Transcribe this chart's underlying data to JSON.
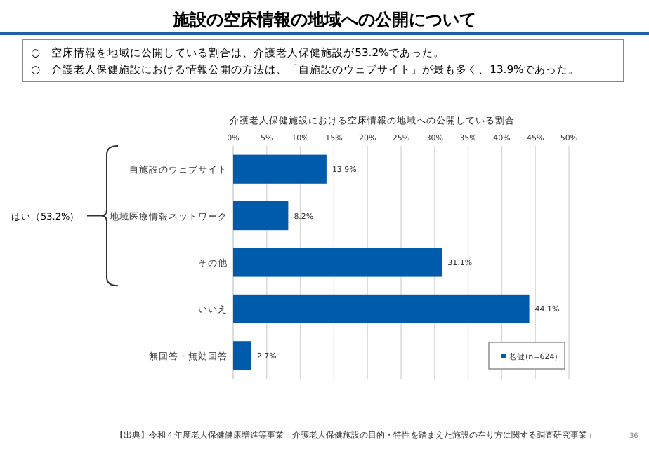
{
  "chart_data": {
    "type": "bar",
    "orientation": "horizontal",
    "title": "施設の空床情報の地域への公開について",
    "subtitle": "介護老人保健施設における空床情報の地域への公開している割合",
    "categories": [
      "自施設のウェブサイト",
      "地域医療情報ネットワーク",
      "その他",
      "いいえ",
      "無回答・無効回答"
    ],
    "series": [
      {
        "name": "老健(n=624)",
        "color": "#005bac",
        "values": [
          13.9,
          8.2,
          31.1,
          44.1,
          2.7
        ],
        "value_labels": [
          "13.9%",
          "8.2%",
          "31.1%",
          "44.1%",
          "2.7%"
        ]
      }
    ],
    "xlim": [
      0,
      50
    ],
    "xticks": [
      {
        "value": 0,
        "label": "0%"
      },
      {
        "value": 5,
        "label": "5%"
      },
      {
        "value": 10,
        "label": "10%"
      },
      {
        "value": 15,
        "label": "15%"
      },
      {
        "value": 20,
        "label": "20%"
      },
      {
        "value": 25,
        "label": "25%"
      },
      {
        "value": 30,
        "label": "30%"
      },
      {
        "value": 35,
        "label": "35%"
      },
      {
        "value": 40,
        "label": "40%"
      },
      {
        "value": 45,
        "label": "45%"
      },
      {
        "value": 50,
        "label": "50%"
      }
    ],
    "grid": "x",
    "legend": "bottom right",
    "annotations": [
      "○　空床情報を地域に公開している割合は、介護老人保健施設が53.2%であった。",
      "○　介護老人保健施設における情報公開の方法は、「自施設のウェブサイト」が最も多く、13.9%であった。",
      "はい（53.2%）",
      "【出典】令和４年度老人保健健康増進等事業「介護老人保健施設の目的・特性を踏まえた施設の在り方に関する調査研究事業」",
      "36"
    ]
  }
}
